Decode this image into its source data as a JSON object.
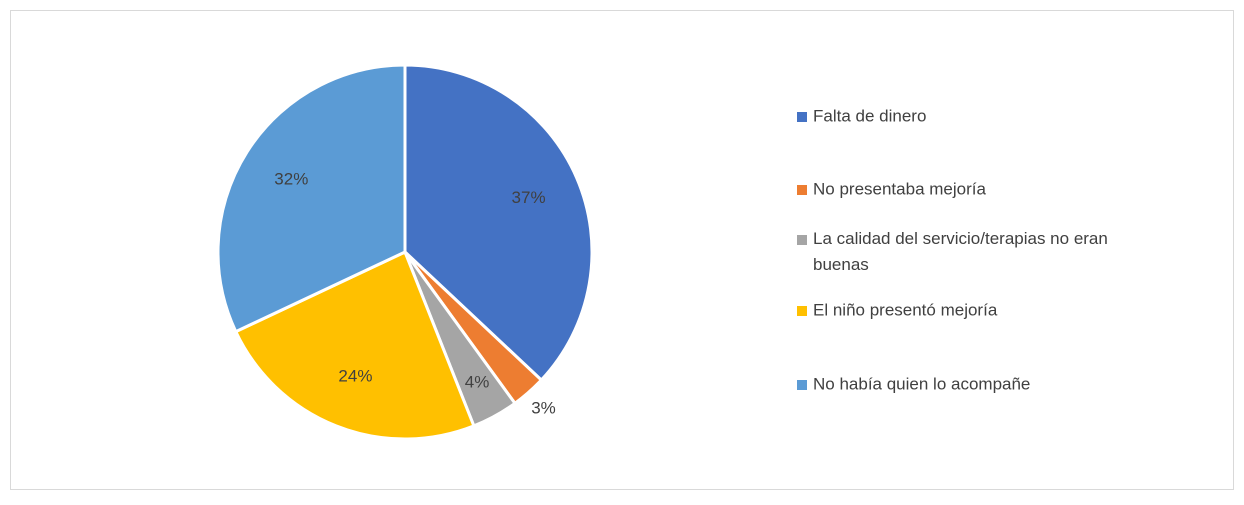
{
  "chart_data": {
    "type": "pie",
    "categories": [
      "Falta de dinero",
      "No presentaba mejoría",
      "La calidad del servicio/terapias no eran buenas",
      "El niño presentó mejoría",
      "No había quien lo acompañe"
    ],
    "values": [
      37,
      3,
      4,
      24,
      32
    ],
    "value_labels": [
      "37%",
      "3%",
      "4%",
      "24%",
      "32%"
    ],
    "colors": [
      "#4472c4",
      "#ed7d31",
      "#a5a5a5",
      "#ffc000",
      "#5b9bd5"
    ],
    "legend": "right"
  }
}
